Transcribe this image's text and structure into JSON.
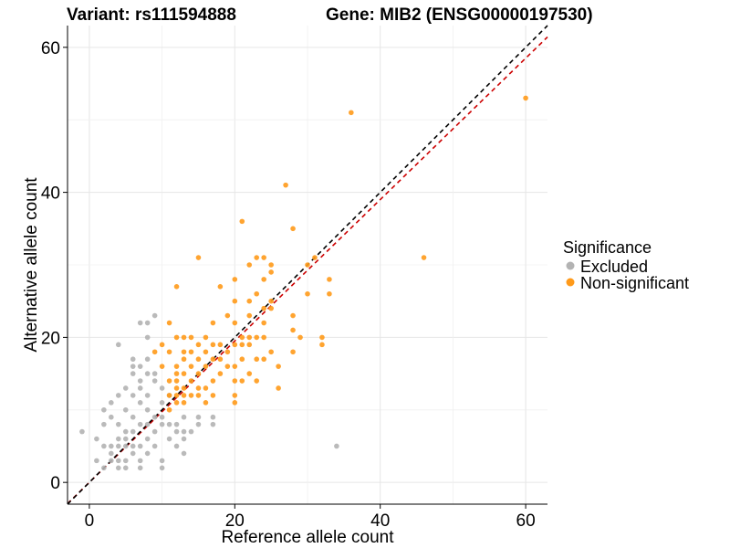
{
  "chart_data": {
    "type": "scatter",
    "title_left": "Variant: rs111594888",
    "title_right": "Gene: MIB2 (ENSG00000197530)",
    "xlabel": "Reference allele count",
    "ylabel": "Alternative allele count",
    "xlim": [
      -3,
      63
    ],
    "ylim": [
      -3,
      63
    ],
    "x_ticks": [
      0,
      20,
      40,
      60
    ],
    "y_ticks": [
      0,
      20,
      40,
      60
    ],
    "grid": true,
    "legend": {
      "title": "Significance",
      "position": "right",
      "entries": [
        {
          "label": "Excluded",
          "color": "#b3b3b3"
        },
        {
          "label": "Non-significant",
          "color": "#ff9a1a"
        }
      ]
    },
    "reference_lines": [
      {
        "style": "dashed",
        "color": "#cc0000",
        "slope": 0.975,
        "intercept": 0
      },
      {
        "style": "dashed",
        "color": "#000000",
        "slope": 1,
        "intercept": 0
      }
    ],
    "series": [
      {
        "name": "Excluded",
        "color": "#b3b3b3",
        "points": [
          [
            -1,
            7
          ],
          [
            1,
            3
          ],
          [
            1,
            6
          ],
          [
            2,
            2
          ],
          [
            2,
            5
          ],
          [
            2,
            8
          ],
          [
            2,
            10
          ],
          [
            3,
            3
          ],
          [
            3,
            4
          ],
          [
            3,
            5
          ],
          [
            3,
            9
          ],
          [
            3,
            11
          ],
          [
            4,
            2
          ],
          [
            4,
            3
          ],
          [
            4,
            5
          ],
          [
            4,
            6
          ],
          [
            4,
            8
          ],
          [
            4,
            12
          ],
          [
            4,
            19
          ],
          [
            5,
            2
          ],
          [
            5,
            3
          ],
          [
            5,
            5
          ],
          [
            5,
            6
          ],
          [
            5,
            7
          ],
          [
            5,
            10
          ],
          [
            5,
            13
          ],
          [
            6,
            4
          ],
          [
            6,
            5
          ],
          [
            6,
            7
          ],
          [
            6,
            9
          ],
          [
            6,
            12
          ],
          [
            6,
            15
          ],
          [
            6,
            16
          ],
          [
            6,
            17
          ],
          [
            7,
            2
          ],
          [
            7,
            3
          ],
          [
            7,
            5
          ],
          [
            7,
            8
          ],
          [
            7,
            11
          ],
          [
            7,
            13
          ],
          [
            7,
            14
          ],
          [
            7,
            16
          ],
          [
            7,
            22
          ],
          [
            8,
            4
          ],
          [
            8,
            6
          ],
          [
            8,
            8
          ],
          [
            8,
            10
          ],
          [
            8,
            12
          ],
          [
            8,
            15
          ],
          [
            8,
            17
          ],
          [
            8,
            20
          ],
          [
            8,
            22
          ],
          [
            9,
            5
          ],
          [
            9,
            7
          ],
          [
            9,
            9
          ],
          [
            9,
            14
          ],
          [
            9,
            15
          ],
          [
            9,
            23
          ],
          [
            10,
            2
          ],
          [
            10,
            3
          ],
          [
            10,
            8
          ],
          [
            10,
            9
          ],
          [
            10,
            11
          ],
          [
            10,
            13
          ],
          [
            11,
            6
          ],
          [
            11,
            8
          ],
          [
            11,
            12
          ],
          [
            12,
            5
          ],
          [
            12,
            7
          ],
          [
            12,
            8
          ],
          [
            13,
            4
          ],
          [
            13,
            6
          ],
          [
            13,
            7
          ],
          [
            13,
            9
          ],
          [
            14,
            7
          ],
          [
            15,
            8
          ],
          [
            15,
            9
          ],
          [
            17,
            8
          ],
          [
            17,
            9
          ],
          [
            34,
            5
          ]
        ]
      },
      {
        "name": "Non-significant",
        "color": "#ff9a1a",
        "points": [
          [
            9,
            18
          ],
          [
            10,
            16
          ],
          [
            10,
            19
          ],
          [
            11,
            10
          ],
          [
            11,
            12
          ],
          [
            11,
            14
          ],
          [
            11,
            18
          ],
          [
            11,
            22
          ],
          [
            12,
            11
          ],
          [
            12,
            12
          ],
          [
            12,
            13
          ],
          [
            12,
            14
          ],
          [
            12,
            15
          ],
          [
            12,
            16
          ],
          [
            12,
            20
          ],
          [
            12,
            27
          ],
          [
            13,
            11
          ],
          [
            13,
            12
          ],
          [
            13,
            13
          ],
          [
            13,
            15
          ],
          [
            13,
            17
          ],
          [
            13,
            18
          ],
          [
            13,
            20
          ],
          [
            14,
            12
          ],
          [
            14,
            14
          ],
          [
            14,
            16
          ],
          [
            14,
            18
          ],
          [
            14,
            20
          ],
          [
            15,
            12
          ],
          [
            15,
            13
          ],
          [
            15,
            15
          ],
          [
            15,
            17
          ],
          [
            15,
            19
          ],
          [
            15,
            31
          ],
          [
            16,
            11
          ],
          [
            16,
            13
          ],
          [
            16,
            16
          ],
          [
            16,
            18
          ],
          [
            16,
            20
          ],
          [
            17,
            12
          ],
          [
            17,
            14
          ],
          [
            17,
            17
          ],
          [
            17,
            19
          ],
          [
            17,
            22
          ],
          [
            18,
            15
          ],
          [
            18,
            17
          ],
          [
            18,
            19
          ],
          [
            18,
            27
          ],
          [
            19,
            16
          ],
          [
            19,
            18
          ],
          [
            19,
            23
          ],
          [
            20,
            11
          ],
          [
            20,
            12
          ],
          [
            20,
            14
          ],
          [
            20,
            16
          ],
          [
            20,
            19
          ],
          [
            20,
            22
          ],
          [
            20,
            25
          ],
          [
            20,
            28
          ],
          [
            21,
            14
          ],
          [
            21,
            17
          ],
          [
            21,
            19
          ],
          [
            21,
            20
          ],
          [
            21,
            36
          ],
          [
            22,
            15
          ],
          [
            22,
            19
          ],
          [
            22,
            20
          ],
          [
            22,
            23
          ],
          [
            22,
            25
          ],
          [
            22,
            30
          ],
          [
            23,
            14
          ],
          [
            23,
            17
          ],
          [
            23,
            20
          ],
          [
            23,
            26
          ],
          [
            23,
            31
          ],
          [
            24,
            17
          ],
          [
            24,
            20
          ],
          [
            24,
            22
          ],
          [
            24,
            24
          ],
          [
            24,
            28
          ],
          [
            24,
            31
          ],
          [
            25,
            18
          ],
          [
            25,
            24
          ],
          [
            25,
            25
          ],
          [
            25,
            29
          ],
          [
            25,
            30
          ],
          [
            26,
            13
          ],
          [
            26,
            16
          ],
          [
            27,
            41
          ],
          [
            28,
            18
          ],
          [
            28,
            21
          ],
          [
            28,
            23
          ],
          [
            28,
            35
          ],
          [
            29,
            20
          ],
          [
            30,
            26
          ],
          [
            30,
            30
          ],
          [
            31,
            31
          ],
          [
            32,
            19
          ],
          [
            32,
            20
          ],
          [
            33,
            26
          ],
          [
            33,
            28
          ],
          [
            36,
            51
          ],
          [
            46,
            31
          ],
          [
            60,
            53
          ]
        ]
      }
    ]
  }
}
